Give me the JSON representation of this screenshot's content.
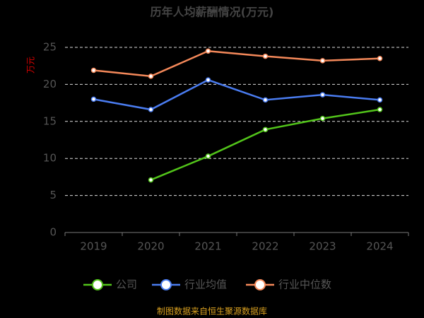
{
  "chart_data": {
    "type": "line",
    "title": "历年人均薪酬情况(万元)",
    "y_label": "万元",
    "source": "制图数据来自恒生聚源数据库",
    "categories": [
      "2019",
      "2020",
      "2021",
      "2022",
      "2023",
      "2024"
    ],
    "series": [
      {
        "name": "公司",
        "color": "#52c41a",
        "values": [
          null,
          7.1,
          10.3,
          13.9,
          15.4,
          16.6
        ]
      },
      {
        "name": "行业均值",
        "color": "#4a7cf0",
        "values": [
          18.0,
          16.6,
          20.6,
          17.9,
          18.6,
          17.9
        ]
      },
      {
        "name": "行业中位数",
        "color": "#f5895a",
        "values": [
          21.9,
          21.1,
          24.5,
          23.8,
          23.2,
          23.5
        ]
      }
    ],
    "ylim": [
      0,
      25
    ],
    "yticks": [
      0,
      5,
      10,
      15,
      20,
      25
    ],
    "grid": true
  }
}
